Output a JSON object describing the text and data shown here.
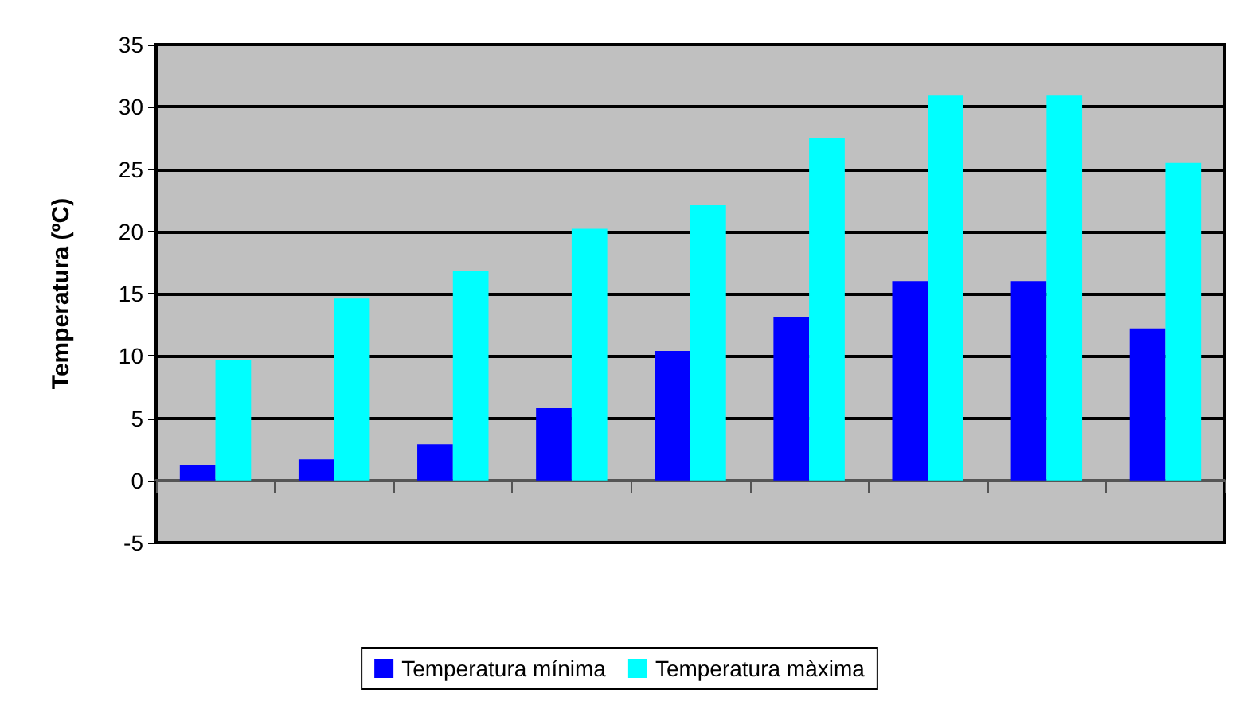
{
  "chart_data": {
    "type": "bar",
    "ylabel": "Temperatura (ºC)",
    "categories": [
      null,
      null,
      null,
      null,
      null,
      null,
      null,
      null,
      null
    ],
    "series": [
      {
        "name": "Temperatura mínima",
        "color": "#0000ff",
        "values": [
          1.2,
          1.7,
          2.9,
          5.8,
          10.4,
          13.1,
          16.0,
          16.0,
          12.2
        ]
      },
      {
        "name": "Temperatura màxima",
        "color": "#00ffff",
        "values": [
          9.7,
          14.6,
          16.8,
          20.2,
          22.1,
          27.5,
          30.9,
          30.9,
          25.5
        ]
      }
    ],
    "ylim": [
      -5,
      35
    ],
    "yticks": [
      -5,
      0,
      5,
      10,
      15,
      20,
      25,
      30,
      35
    ],
    "grid": "y",
    "legend": "bottom"
  }
}
